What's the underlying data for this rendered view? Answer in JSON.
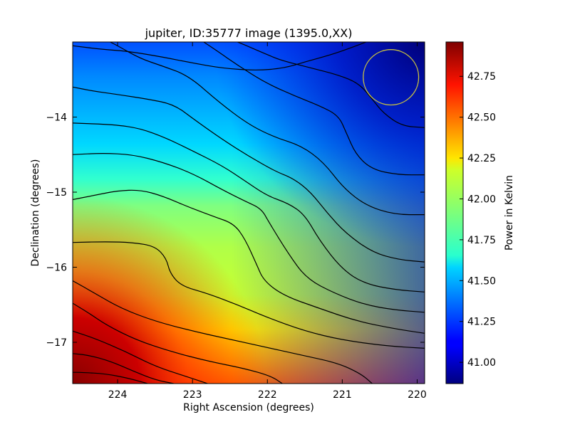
{
  "chart_data": {
    "type": "heatmap",
    "title": "jupiter, ID:35777 image (1395.0,XX)",
    "xlabel": "Right Ascension (degrees)",
    "ylabel": "Declination (degrees)",
    "xlim": [
      224.6,
      219.9
    ],
    "ylim": [
      -17.55,
      -13.0
    ],
    "x_ticks": [
      224,
      223,
      222,
      221,
      220
    ],
    "y_ticks": [
      -14,
      -15,
      -16,
      -17
    ],
    "colorbar": {
      "label": "Power in Kelvin",
      "range": [
        40.87,
        42.96
      ],
      "colormap": "jet",
      "ticks": [
        "41.00",
        "41.25",
        "41.50",
        "41.75",
        "42.00",
        "42.25",
        "42.50",
        "42.75"
      ]
    },
    "contours": {
      "color": "#000000",
      "levels": [
        {
          "level": 41.1,
          "path": [
            [
              220.68,
              -13.0
            ],
            [
              220.89,
              -13.08
            ],
            [
              221.15,
              -13.17
            ],
            [
              221.48,
              -13.26
            ],
            [
              221.78,
              -13.35
            ],
            [
              222.15,
              -13.38
            ],
            [
              222.6,
              -13.35
            ],
            [
              223.0,
              -13.28
            ],
            [
              223.4,
              -13.2
            ],
            [
              223.88,
              -13.12
            ],
            [
              224.2,
              -13.1
            ],
            [
              224.6,
              -13.05
            ]
          ],
          "low": true
        },
        {
          "level": 41.1,
          "path": [
            [
              219.9,
              -14.14
            ],
            [
              220.2,
              -14.12
            ],
            [
              220.45,
              -13.95
            ],
            [
              220.6,
              -13.76
            ],
            [
              220.78,
              -13.55
            ],
            [
              221.05,
              -13.44
            ],
            [
              221.4,
              -13.35
            ],
            [
              221.8,
              -13.25
            ],
            [
              222.0,
              -13.17
            ],
            [
              222.3,
              -13.04
            ],
            [
              222.4,
              -13.0
            ]
          ],
          "low": false
        },
        {
          "level": 41.3,
          "path": [
            [
              219.9,
              -14.77
            ],
            [
              220.25,
              -14.77
            ],
            [
              220.6,
              -14.7
            ],
            [
              220.82,
              -14.5
            ],
            [
              220.95,
              -14.2
            ],
            [
              221.05,
              -13.98
            ],
            [
              221.3,
              -13.85
            ],
            [
              221.68,
              -13.7
            ],
            [
              222.05,
              -13.53
            ],
            [
              222.38,
              -13.32
            ],
            [
              222.7,
              -13.1
            ],
            [
              222.85,
              -13.0
            ]
          ],
          "low": false
        },
        {
          "level": 41.5,
          "path": [
            [
              219.9,
              -15.3
            ],
            [
              220.3,
              -15.3
            ],
            [
              220.68,
              -15.18
            ],
            [
              220.98,
              -14.95
            ],
            [
              221.25,
              -14.6
            ],
            [
              221.55,
              -14.38
            ],
            [
              221.9,
              -14.27
            ],
            [
              222.25,
              -14.1
            ],
            [
              222.65,
              -13.8
            ],
            [
              223.05,
              -13.45
            ],
            [
              223.4,
              -13.32
            ],
            [
              223.7,
              -13.22
            ],
            [
              224.0,
              -13.05
            ],
            [
              224.1,
              -13.0
            ]
          ],
          "low": false
        },
        {
          "level": 41.7,
          "path": [
            [
              219.9,
              -15.93
            ],
            [
              220.25,
              -15.9
            ],
            [
              220.6,
              -15.8
            ],
            [
              220.95,
              -15.55
            ],
            [
              221.2,
              -15.28
            ],
            [
              221.42,
              -15.0
            ],
            [
              221.65,
              -14.82
            ],
            [
              221.9,
              -14.72
            ],
            [
              222.25,
              -14.52
            ],
            [
              222.6,
              -14.3
            ],
            [
              222.98,
              -14.03
            ],
            [
              223.25,
              -13.83
            ],
            [
              223.6,
              -13.76
            ],
            [
              224.0,
              -13.7
            ],
            [
              224.35,
              -13.65
            ],
            [
              224.6,
              -13.6
            ]
          ],
          "low": false
        },
        {
          "level": 41.9,
          "path": [
            [
              219.9,
              -16.33
            ],
            [
              220.3,
              -16.3
            ],
            [
              220.7,
              -16.22
            ],
            [
              221.0,
              -16.03
            ],
            [
              221.3,
              -15.65
            ],
            [
              221.5,
              -15.3
            ],
            [
              221.72,
              -15.15
            ],
            [
              222.0,
              -15.05
            ],
            [
              222.3,
              -14.85
            ],
            [
              222.6,
              -14.65
            ],
            [
              223.0,
              -14.45
            ],
            [
              223.35,
              -14.28
            ],
            [
              223.7,
              -14.15
            ],
            [
              224.05,
              -14.1
            ],
            [
              224.6,
              -14.08
            ]
          ],
          "low": false
        },
        {
          "level": 42.0,
          "path": [
            [
              219.9,
              -16.6
            ],
            [
              220.3,
              -16.57
            ],
            [
              220.7,
              -16.5
            ],
            [
              221.1,
              -16.35
            ],
            [
              221.48,
              -16.15
            ],
            [
              221.72,
              -15.82
            ],
            [
              221.98,
              -15.4
            ],
            [
              222.08,
              -15.22
            ],
            [
              222.3,
              -15.12
            ],
            [
              222.6,
              -14.97
            ],
            [
              223.0,
              -14.75
            ],
            [
              223.4,
              -14.6
            ],
            [
              223.8,
              -14.5
            ],
            [
              224.2,
              -14.48
            ],
            [
              224.6,
              -14.5
            ]
          ],
          "low": false
        },
        {
          "level": 42.1,
          "path": [
            [
              219.9,
              -16.88
            ],
            [
              220.3,
              -16.82
            ],
            [
              220.8,
              -16.72
            ],
            [
              221.3,
              -16.55
            ],
            [
              221.78,
              -16.38
            ],
            [
              222.05,
              -16.18
            ],
            [
              222.15,
              -15.95
            ],
            [
              222.3,
              -15.62
            ],
            [
              222.45,
              -15.42
            ],
            [
              222.7,
              -15.33
            ],
            [
              223.05,
              -15.2
            ],
            [
              223.4,
              -15.05
            ],
            [
              223.7,
              -14.97
            ],
            [
              224.0,
              -14.98
            ],
            [
              224.35,
              -15.05
            ],
            [
              224.6,
              -15.1
            ]
          ],
          "low": false
        },
        {
          "level": 42.2,
          "path": [
            [
              219.9,
              -17.08
            ],
            [
              220.4,
              -17.05
            ],
            [
              221.0,
              -16.97
            ],
            [
              221.5,
              -16.85
            ],
            [
              222.0,
              -16.67
            ],
            [
              222.4,
              -16.5
            ],
            [
              222.8,
              -16.35
            ],
            [
              223.15,
              -16.25
            ],
            [
              223.3,
              -16.08
            ],
            [
              223.35,
              -15.88
            ],
            [
              223.5,
              -15.72
            ],
            [
              223.8,
              -15.67
            ],
            [
              224.15,
              -15.66
            ],
            [
              224.6,
              -15.67
            ]
          ],
          "low": false
        },
        {
          "level": 42.4,
          "path": [
            [
              220.6,
              -17.55
            ],
            [
              220.75,
              -17.42
            ],
            [
              221.05,
              -17.28
            ],
            [
              221.5,
              -17.18
            ],
            [
              222.0,
              -17.07
            ],
            [
              222.5,
              -16.96
            ],
            [
              223.0,
              -16.85
            ],
            [
              223.5,
              -16.72
            ],
            [
              223.95,
              -16.55
            ],
            [
              224.3,
              -16.35
            ],
            [
              224.6,
              -16.18
            ]
          ],
          "low": false
        },
        {
          "level": 42.55,
          "path": [
            [
              221.8,
              -17.55
            ],
            [
              221.95,
              -17.45
            ],
            [
              222.3,
              -17.35
            ],
            [
              222.8,
              -17.25
            ],
            [
              223.3,
              -17.12
            ],
            [
              223.75,
              -16.97
            ],
            [
              224.15,
              -16.77
            ],
            [
              224.4,
              -16.6
            ],
            [
              224.6,
              -16.48
            ]
          ],
          "low": false
        },
        {
          "level": 42.7,
          "path": [
            [
              222.8,
              -17.55
            ],
            [
              223.1,
              -17.45
            ],
            [
              223.5,
              -17.32
            ],
            [
              223.9,
              -17.12
            ],
            [
              224.3,
              -16.95
            ],
            [
              224.6,
              -16.85
            ]
          ],
          "low": false
        },
        {
          "level": 42.85,
          "path": [
            [
              223.25,
              -17.55
            ],
            [
              223.5,
              -17.5
            ],
            [
              223.8,
              -17.38
            ],
            [
              224.1,
              -17.25
            ],
            [
              224.4,
              -17.17
            ],
            [
              224.6,
              -17.15
            ]
          ],
          "low": false
        },
        {
          "level": 42.95,
          "path": [
            [
              223.6,
              -17.55
            ],
            [
              223.85,
              -17.48
            ],
            [
              224.15,
              -17.42
            ],
            [
              224.5,
              -17.4
            ],
            [
              224.6,
              -17.4
            ]
          ],
          "low": false
        }
      ]
    },
    "marker_circle": {
      "center": [
        220.35,
        -13.47
      ],
      "radius_ra": 0.37,
      "color": "#c8c040"
    }
  }
}
